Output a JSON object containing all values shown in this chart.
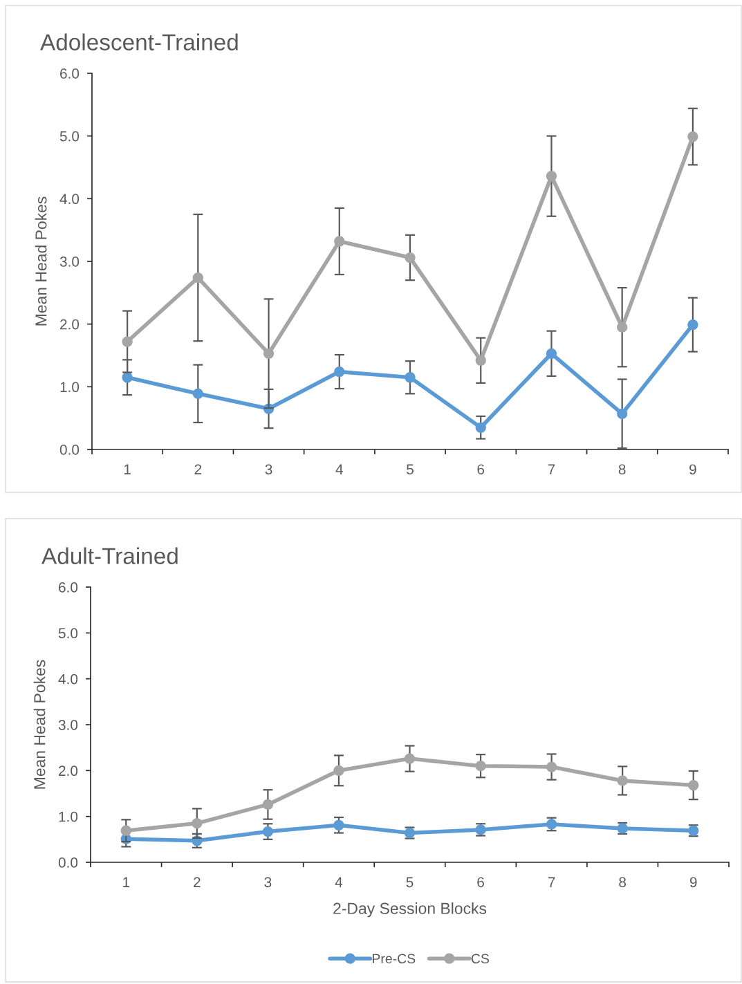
{
  "chart_data": [
    {
      "type": "line",
      "title": "Adolescent-Trained",
      "ylabel": "Mean Head Pokes",
      "categories": [
        "1",
        "2",
        "3",
        "4",
        "5",
        "6",
        "7",
        "8",
        "9"
      ],
      "ylim": [
        0,
        6
      ],
      "yticks": [
        {
          "value": 0,
          "label": "0.0"
        },
        {
          "value": 1,
          "label": "1.0"
        },
        {
          "value": 2,
          "label": "2.0"
        },
        {
          "value": 3,
          "label": "3.0"
        },
        {
          "value": 4,
          "label": "4.0"
        },
        {
          "value": 5,
          "label": "5.0"
        },
        {
          "value": 6,
          "label": "6.0"
        }
      ],
      "marker": "circle",
      "line_style": "solid",
      "series": [
        {
          "color": "#5b9bd5",
          "values": [
            1.15,
            0.89,
            0.65,
            1.24,
            1.15,
            0.35,
            1.53,
            0.57,
            1.99
          ],
          "errors": [
            0.28,
            0.46,
            0.31,
            0.27,
            0.26,
            0.18,
            0.36,
            0.55,
            0.43
          ]
        },
        {
          "color": "#a5a5a5",
          "values": [
            1.72,
            2.74,
            1.53,
            3.32,
            3.06,
            1.42,
            4.36,
            1.95,
            4.99
          ],
          "errors": [
            0.49,
            1.01,
            0.87,
            0.53,
            0.36,
            0.36,
            0.64,
            0.63,
            0.45
          ]
        }
      ]
    },
    {
      "type": "line",
      "title": "Adult-Trained",
      "xlabel": "2-Day Session Blocks",
      "ylabel": "Mean Head Pokes",
      "categories": [
        "1",
        "2",
        "3",
        "4",
        "5",
        "6",
        "7",
        "8",
        "9"
      ],
      "ylim": [
        0,
        6
      ],
      "yticks": [
        {
          "value": 0,
          "label": "0.0"
        },
        {
          "value": 1,
          "label": "1.0"
        },
        {
          "value": 2,
          "label": "2.0"
        },
        {
          "value": 3,
          "label": "3.0"
        },
        {
          "value": 4,
          "label": "4.0"
        },
        {
          "value": 5,
          "label": "5.0"
        },
        {
          "value": 6,
          "label": "6.0"
        }
      ],
      "marker": "circle",
      "line_style": "solid",
      "legend": "bottom",
      "series": [
        {
          "name": "Pre-CS",
          "color": "#5b9bd5",
          "values": [
            0.51,
            0.47,
            0.67,
            0.81,
            0.64,
            0.71,
            0.83,
            0.74,
            0.69
          ],
          "errors": [
            0.17,
            0.15,
            0.17,
            0.17,
            0.12,
            0.13,
            0.14,
            0.12,
            0.12
          ]
        },
        {
          "name": "CS",
          "color": "#a5a5a5",
          "values": [
            0.69,
            0.85,
            1.26,
            2.0,
            2.26,
            2.1,
            2.08,
            1.78,
            1.68
          ],
          "errors": [
            0.24,
            0.32,
            0.32,
            0.33,
            0.28,
            0.25,
            0.28,
            0.31,
            0.31
          ]
        }
      ]
    }
  ]
}
